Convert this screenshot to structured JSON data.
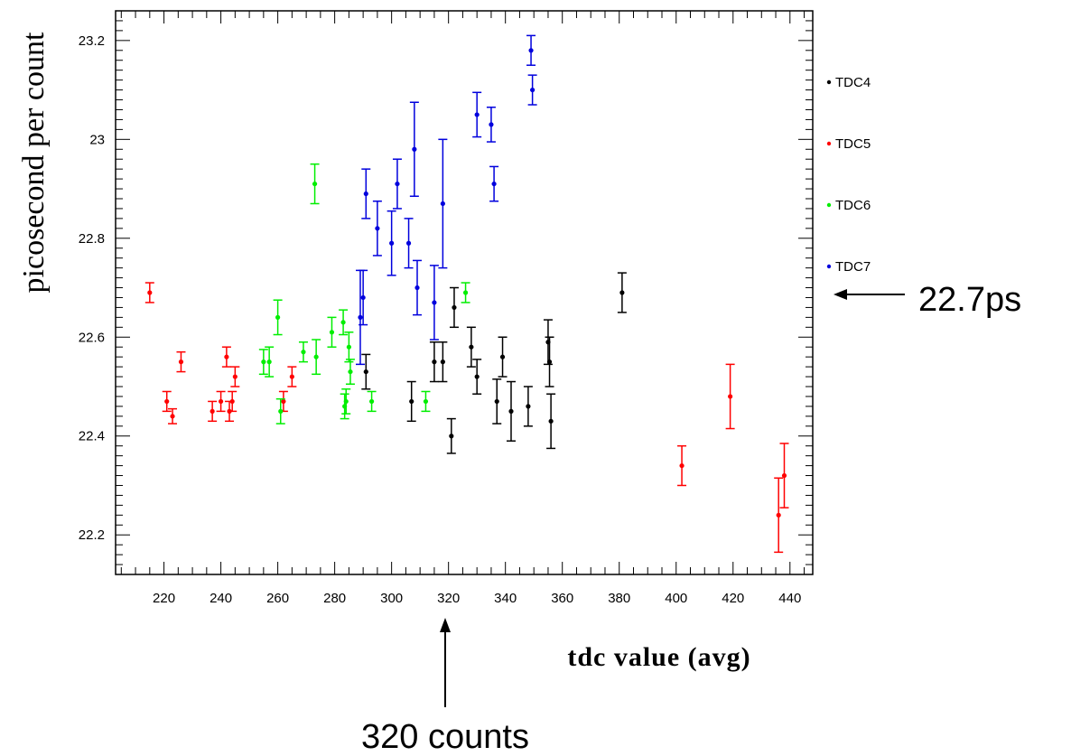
{
  "chart_data": {
    "type": "scatter",
    "title": "",
    "xlabel": "tdc value (avg)",
    "ylabel": "picosecond per count",
    "xlim": [
      203,
      448
    ],
    "ylim": [
      22.12,
      23.26
    ],
    "x_ticks": [
      "220",
      "240",
      "260",
      "280",
      "300",
      "320",
      "340",
      "360",
      "380",
      "400",
      "420",
      "440"
    ],
    "y_ticks": [
      "22.2",
      "22.4",
      "22.6",
      "22.8",
      "23",
      "23.2"
    ],
    "error_bars": true,
    "legend_position": "right",
    "series": [
      {
        "name": "TDC4",
        "color": "#000000",
        "points": [
          {
            "x": 291,
            "y": 22.53,
            "err": 0.035
          },
          {
            "x": 307,
            "y": 22.47,
            "err": 0.04
          },
          {
            "x": 315,
            "y": 22.55,
            "err": 0.04
          },
          {
            "x": 318,
            "y": 22.55,
            "err": 0.04
          },
          {
            "x": 321,
            "y": 22.4,
            "err": 0.035
          },
          {
            "x": 322,
            "y": 22.66,
            "err": 0.04
          },
          {
            "x": 328,
            "y": 22.58,
            "err": 0.04
          },
          {
            "x": 330,
            "y": 22.52,
            "err": 0.035
          },
          {
            "x": 337,
            "y": 22.47,
            "err": 0.045
          },
          {
            "x": 339,
            "y": 22.56,
            "err": 0.04
          },
          {
            "x": 342,
            "y": 22.45,
            "err": 0.06
          },
          {
            "x": 348,
            "y": 22.46,
            "err": 0.04
          },
          {
            "x": 355,
            "y": 22.59,
            "err": 0.045
          },
          {
            "x": 355.5,
            "y": 22.55,
            "err": 0.05
          },
          {
            "x": 356,
            "y": 22.43,
            "err": 0.055
          },
          {
            "x": 381,
            "y": 22.69,
            "err": 0.04
          }
        ]
      },
      {
        "name": "TDC5",
        "color": "#ff0000",
        "points": [
          {
            "x": 215,
            "y": 22.69,
            "err": 0.02
          },
          {
            "x": 221,
            "y": 22.47,
            "err": 0.02
          },
          {
            "x": 223,
            "y": 22.44,
            "err": 0.015
          },
          {
            "x": 226,
            "y": 22.55,
            "err": 0.02
          },
          {
            "x": 237,
            "y": 22.45,
            "err": 0.02
          },
          {
            "x": 240,
            "y": 22.47,
            "err": 0.02
          },
          {
            "x": 242,
            "y": 22.56,
            "err": 0.02
          },
          {
            "x": 243,
            "y": 22.45,
            "err": 0.02
          },
          {
            "x": 244,
            "y": 22.47,
            "err": 0.02
          },
          {
            "x": 245,
            "y": 22.52,
            "err": 0.02
          },
          {
            "x": 262,
            "y": 22.47,
            "err": 0.02
          },
          {
            "x": 265,
            "y": 22.52,
            "err": 0.02
          },
          {
            "x": 402,
            "y": 22.34,
            "err": 0.04
          },
          {
            "x": 419,
            "y": 22.48,
            "err": 0.065
          },
          {
            "x": 436,
            "y": 22.24,
            "err": 0.075
          },
          {
            "x": 438,
            "y": 22.32,
            "err": 0.065
          }
        ]
      },
      {
        "name": "TDC6",
        "color": "#00ee00",
        "points": [
          {
            "x": 255,
            "y": 22.55,
            "err": 0.025
          },
          {
            "x": 257,
            "y": 22.55,
            "err": 0.03
          },
          {
            "x": 260,
            "y": 22.64,
            "err": 0.035
          },
          {
            "x": 261,
            "y": 22.45,
            "err": 0.025
          },
          {
            "x": 269,
            "y": 22.57,
            "err": 0.02
          },
          {
            "x": 273,
            "y": 22.91,
            "err": 0.04
          },
          {
            "x": 273.5,
            "y": 22.56,
            "err": 0.035
          },
          {
            "x": 279,
            "y": 22.61,
            "err": 0.03
          },
          {
            "x": 283,
            "y": 22.63,
            "err": 0.025
          },
          {
            "x": 283.5,
            "y": 22.46,
            "err": 0.025
          },
          {
            "x": 284,
            "y": 22.47,
            "err": 0.025
          },
          {
            "x": 285,
            "y": 22.58,
            "err": 0.03
          },
          {
            "x": 285.5,
            "y": 22.53,
            "err": 0.025
          },
          {
            "x": 293,
            "y": 22.47,
            "err": 0.02
          },
          {
            "x": 312,
            "y": 22.47,
            "err": 0.02
          },
          {
            "x": 326,
            "y": 22.69,
            "err": 0.02
          }
        ]
      },
      {
        "name": "TDC7",
        "color": "#0000dd",
        "points": [
          {
            "x": 289,
            "y": 22.64,
            "err": 0.095
          },
          {
            "x": 290,
            "y": 22.68,
            "err": 0.055
          },
          {
            "x": 291,
            "y": 22.89,
            "err": 0.05
          },
          {
            "x": 295,
            "y": 22.82,
            "err": 0.055
          },
          {
            "x": 300,
            "y": 22.79,
            "err": 0.065
          },
          {
            "x": 302,
            "y": 22.91,
            "err": 0.05
          },
          {
            "x": 306,
            "y": 22.79,
            "err": 0.05
          },
          {
            "x": 308,
            "y": 22.98,
            "err": 0.095
          },
          {
            "x": 309,
            "y": 22.7,
            "err": 0.055
          },
          {
            "x": 315,
            "y": 22.67,
            "err": 0.075
          },
          {
            "x": 318,
            "y": 22.87,
            "err": 0.13
          },
          {
            "x": 330,
            "y": 23.05,
            "err": 0.045
          },
          {
            "x": 335,
            "y": 23.03,
            "err": 0.035
          },
          {
            "x": 336,
            "y": 22.91,
            "err": 0.035
          },
          {
            "x": 349,
            "y": 23.18,
            "err": 0.03
          },
          {
            "x": 349.5,
            "y": 23.1,
            "err": 0.03
          }
        ]
      }
    ]
  },
  "annotations": {
    "arrow_right_label": "22.7ps",
    "arrow_bottom_label": "320 counts"
  }
}
